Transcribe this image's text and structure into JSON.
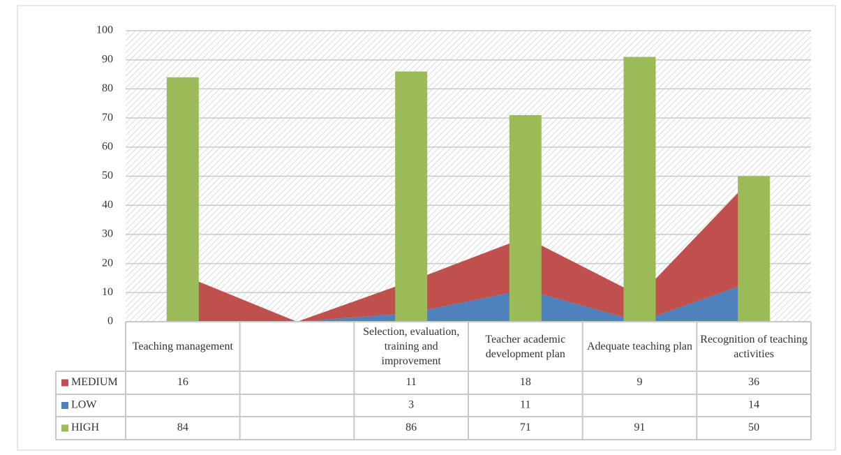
{
  "chart_data": {
    "type": "bar",
    "categories": [
      "Teaching management",
      null,
      "Selection, evaluation, training and improvement",
      "Teacher academic development plan",
      "Adequate teaching plan",
      "Recognition of teaching activities"
    ],
    "series": [
      {
        "name": "MEDIUM",
        "type": "area",
        "color": "#c0504d",
        "values": [
          16,
          null,
          11,
          18,
          9,
          36
        ]
      },
      {
        "name": "LOW",
        "type": "area",
        "color": "#4f81bd",
        "values": [
          null,
          null,
          3,
          11,
          null,
          14
        ]
      },
      {
        "name": "HIGH",
        "type": "bar",
        "color": "#9bbb59",
        "values": [
          84,
          null,
          86,
          71,
          91,
          50
        ]
      }
    ],
    "stack_order": [
      "LOW",
      "MEDIUM"
    ],
    "ylim": [
      0,
      100
    ],
    "yticks": [
      0,
      10,
      20,
      30,
      40,
      50,
      60,
      70,
      80,
      90,
      100
    ],
    "grid": true,
    "data_table": true
  }
}
